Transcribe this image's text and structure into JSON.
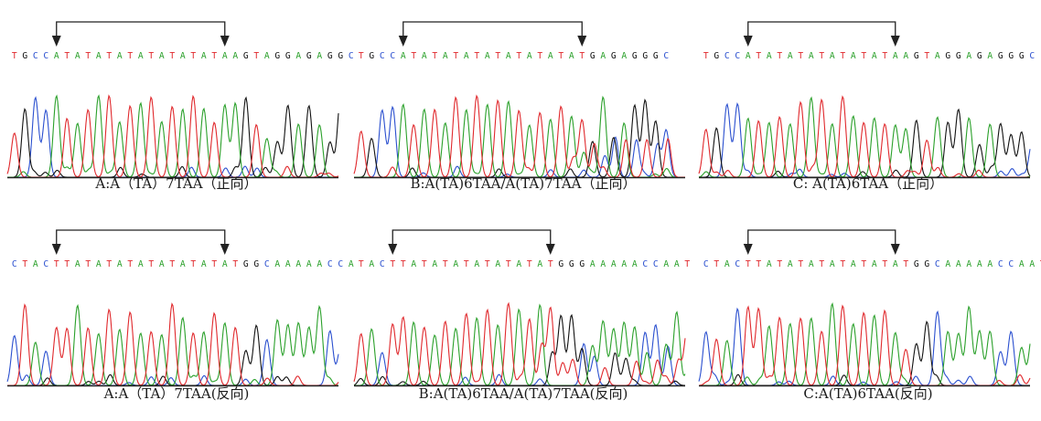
{
  "base_colors": {
    "A": "#2aa02a",
    "T": "#e0282c",
    "G": "#111111",
    "C": "#2a4fcf"
  },
  "panels": [
    {
      "id": "a-forward",
      "sequence": "TGCCATATATATATATATATAAGTAGGAGAGGC",
      "bracket": [
        4,
        20
      ],
      "caption": "A:A（TA）7TAA（正向）"
    },
    {
      "id": "b-forward",
      "sequence": "TGCCATATATATATATATATATGAGAGGGC",
      "bracket": [
        4,
        21
      ],
      "caption": "B:A(TA)6TAA/A(TA)7TAA（正向）"
    },
    {
      "id": "c-forward",
      "sequence": "TGCCATATATATATATATAAGTAGGAGAGGGC",
      "bracket": [
        4,
        18
      ],
      "caption": "C: A(TA)6TAA（正向）"
    },
    {
      "id": "a-reverse",
      "sequence": "CTACTTATATATATATATATATGGCAAAAACCA",
      "bracket": [
        4,
        20
      ],
      "caption": "A:A（TA）7TAA(反向)"
    },
    {
      "id": "b-reverse",
      "sequence": "TACTTATATATATATATATGGGAAAAACCAAT",
      "bracket": [
        3,
        18
      ],
      "caption": "B:A(TA)6TAA/A(TA)7TAA(反向)"
    },
    {
      "id": "c-reverse",
      "sequence": "CTACTTATATATATATATATGGCAAAAACCAAT",
      "bracket": [
        4,
        18
      ],
      "caption": "C:A(TA)6TAA(反向)"
    }
  ]
}
